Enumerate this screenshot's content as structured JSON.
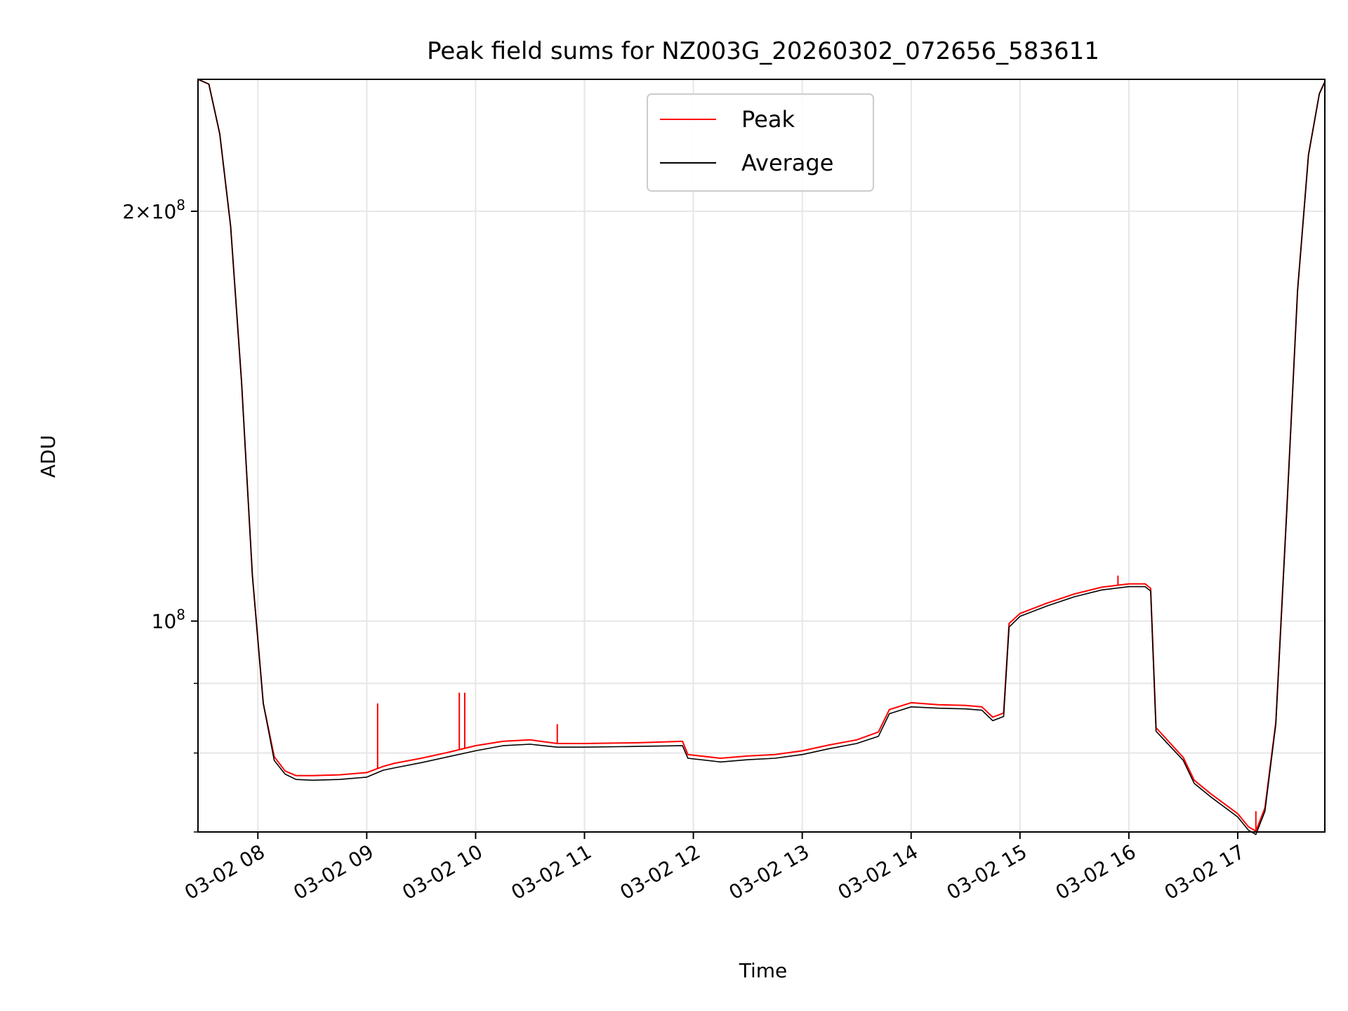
{
  "chart_data": {
    "type": "line",
    "title": "Peak field sums for NZ003G_20260302_072656_583611",
    "xlabel": "Time",
    "ylabel": "ADU",
    "y_scale": "log",
    "ylim": [
      70000000,
      250000000
    ],
    "xlim": [
      "2026-03-02 07:27",
      "2026-03-02 17:48"
    ],
    "grid": true,
    "legend_position": "top-center",
    "x_ticks": [
      {
        "value": "2026-03-02 08:00",
        "label": "03-02 08"
      },
      {
        "value": "2026-03-02 09:00",
        "label": "03-02 09"
      },
      {
        "value": "2026-03-02 10:00",
        "label": "03-02 10"
      },
      {
        "value": "2026-03-02 11:00",
        "label": "03-02 11"
      },
      {
        "value": "2026-03-02 12:00",
        "label": "03-02 12"
      },
      {
        "value": "2026-03-02 13:00",
        "label": "03-02 13"
      },
      {
        "value": "2026-03-02 14:00",
        "label": "03-02 14"
      },
      {
        "value": "2026-03-02 15:00",
        "label": "03-02 15"
      },
      {
        "value": "2026-03-02 16:00",
        "label": "03-02 16"
      },
      {
        "value": "2026-03-02 17:00",
        "label": "03-02 17"
      }
    ],
    "y_major_ticks": [
      {
        "value": 100000000,
        "base": "10",
        "exp": "8"
      },
      {
        "value": 200000000,
        "mant": "2",
        "times": "×",
        "base": "10",
        "exp": "8"
      }
    ],
    "y_minor_ticks": [
      70000000,
      80000000,
      90000000
    ],
    "series": [
      {
        "name": "Average",
        "color": "#000000",
        "x": [
          "2026-03-02 07:27",
          "2026-03-02 07:33",
          "2026-03-02 07:39",
          "2026-03-02 07:45",
          "2026-03-02 07:51",
          "2026-03-02 07:57",
          "2026-03-02 08:03",
          "2026-03-02 08:09",
          "2026-03-02 08:15",
          "2026-03-02 08:21",
          "2026-03-02 08:30",
          "2026-03-02 08:45",
          "2026-03-02 09:00",
          "2026-03-02 09:09",
          "2026-03-02 09:15",
          "2026-03-02 09:30",
          "2026-03-02 09:45",
          "2026-03-02 10:00",
          "2026-03-02 10:15",
          "2026-03-02 10:30",
          "2026-03-02 10:45",
          "2026-03-02 11:00",
          "2026-03-02 11:30",
          "2026-03-02 11:54",
          "2026-03-02 11:57",
          "2026-03-02 12:15",
          "2026-03-02 12:30",
          "2026-03-02 12:45",
          "2026-03-02 13:00",
          "2026-03-02 13:15",
          "2026-03-02 13:30",
          "2026-03-02 13:42",
          "2026-03-02 13:48",
          "2026-03-02 14:00",
          "2026-03-02 14:15",
          "2026-03-02 14:30",
          "2026-03-02 14:39",
          "2026-03-02 14:45",
          "2026-03-02 14:51",
          "2026-03-02 14:54",
          "2026-03-02 15:00",
          "2026-03-02 15:15",
          "2026-03-02 15:30",
          "2026-03-02 15:45",
          "2026-03-02 16:00",
          "2026-03-02 16:09",
          "2026-03-02 16:12",
          "2026-03-02 16:15",
          "2026-03-02 16:30",
          "2026-03-02 16:36",
          "2026-03-02 16:45",
          "2026-03-02 17:00",
          "2026-03-02 17:06",
          "2026-03-02 17:10",
          "2026-03-02 17:15",
          "2026-03-02 17:21",
          "2026-03-02 17:27",
          "2026-03-02 17:33",
          "2026-03-02 17:39",
          "2026-03-02 17:45",
          "2026-03-02 17:48"
        ],
        "values": [
          250000000,
          248000000,
          228000000,
          195000000,
          150000000,
          108000000,
          87000000,
          79000000,
          77200000,
          76500000,
          76400000,
          76500000,
          76800000,
          77700000,
          78000000,
          78700000,
          79500000,
          80300000,
          81000000,
          81200000,
          80800000,
          80800000,
          80900000,
          81000000,
          79300000,
          78800000,
          79100000,
          79300000,
          79800000,
          80600000,
          81300000,
          82300000,
          85500000,
          86500000,
          86300000,
          86200000,
          86000000,
          84500000,
          85100000,
          99000000,
          100800000,
          102600000,
          104200000,
          105400000,
          106000000,
          106000000,
          105200000,
          83000000,
          79000000,
          76000000,
          74300000,
          71800000,
          70200000,
          69700000,
          72500000,
          84000000,
          120000000,
          175000000,
          220000000,
          244000000,
          249000000
        ]
      },
      {
        "name": "Peak",
        "color": "#ff0000",
        "x": [
          "2026-03-02 07:27",
          "2026-03-02 07:33",
          "2026-03-02 07:39",
          "2026-03-02 07:45",
          "2026-03-02 07:51",
          "2026-03-02 07:57",
          "2026-03-02 08:03",
          "2026-03-02 08:09",
          "2026-03-02 08:15",
          "2026-03-02 08:21",
          "2026-03-02 08:30",
          "2026-03-02 08:45",
          "2026-03-02 09:00",
          "2026-03-02 09:09",
          "2026-03-02 09:15",
          "2026-03-02 09:30",
          "2026-03-02 09:45",
          "2026-03-02 10:00",
          "2026-03-02 10:15",
          "2026-03-02 10:30",
          "2026-03-02 10:45",
          "2026-03-02 11:00",
          "2026-03-02 11:30",
          "2026-03-02 11:54",
          "2026-03-02 11:57",
          "2026-03-02 12:15",
          "2026-03-02 12:30",
          "2026-03-02 12:45",
          "2026-03-02 13:00",
          "2026-03-02 13:15",
          "2026-03-02 13:30",
          "2026-03-02 13:42",
          "2026-03-02 13:48",
          "2026-03-02 14:00",
          "2026-03-02 14:15",
          "2026-03-02 14:30",
          "2026-03-02 14:39",
          "2026-03-02 14:45",
          "2026-03-02 14:51",
          "2026-03-02 14:54",
          "2026-03-02 15:00",
          "2026-03-02 15:15",
          "2026-03-02 15:30",
          "2026-03-02 15:45",
          "2026-03-02 16:00",
          "2026-03-02 16:09",
          "2026-03-02 16:12",
          "2026-03-02 16:15",
          "2026-03-02 16:30",
          "2026-03-02 16:36",
          "2026-03-02 16:45",
          "2026-03-02 17:00",
          "2026-03-02 17:06",
          "2026-03-02 17:10",
          "2026-03-02 17:15",
          "2026-03-02 17:21",
          "2026-03-02 17:27",
          "2026-03-02 17:33",
          "2026-03-02 17:39",
          "2026-03-02 17:45",
          "2026-03-02 17:48"
        ],
        "values": [
          250000000,
          248000000,
          228000000,
          195000000,
          150000000,
          108000000,
          87000000,
          79500000,
          77600000,
          77000000,
          77000000,
          77100000,
          77400000,
          78200000,
          78600000,
          79300000,
          80100000,
          81000000,
          81600000,
          81800000,
          81300000,
          81300000,
          81400000,
          81600000,
          79800000,
          79300000,
          79600000,
          79800000,
          80300000,
          81100000,
          81800000,
          82900000,
          86100000,
          87100000,
          86800000,
          86700000,
          86500000,
          85000000,
          85600000,
          99600000,
          101300000,
          103100000,
          104700000,
          105900000,
          106500000,
          106500000,
          105700000,
          83500000,
          79400000,
          76400000,
          74700000,
          72200000,
          70600000,
          70100000,
          72900000,
          84300000,
          120500000,
          175000000,
          220000000,
          244000000,
          249000000
        ],
        "spikes": [
          {
            "x": "2026-03-02 09:06",
            "value": 87000000
          },
          {
            "x": "2026-03-02 09:51",
            "value": 88600000
          },
          {
            "x": "2026-03-02 09:54",
            "value": 88600000
          },
          {
            "x": "2026-03-02 10:45",
            "value": 84000000
          },
          {
            "x": "2026-03-02 15:54",
            "value": 108000000
          },
          {
            "x": "2026-03-02 17:10",
            "value": 72500000
          }
        ]
      }
    ],
    "legend": [
      {
        "label": "Peak",
        "color": "#ff0000"
      },
      {
        "label": "Average",
        "color": "#000000"
      }
    ]
  }
}
